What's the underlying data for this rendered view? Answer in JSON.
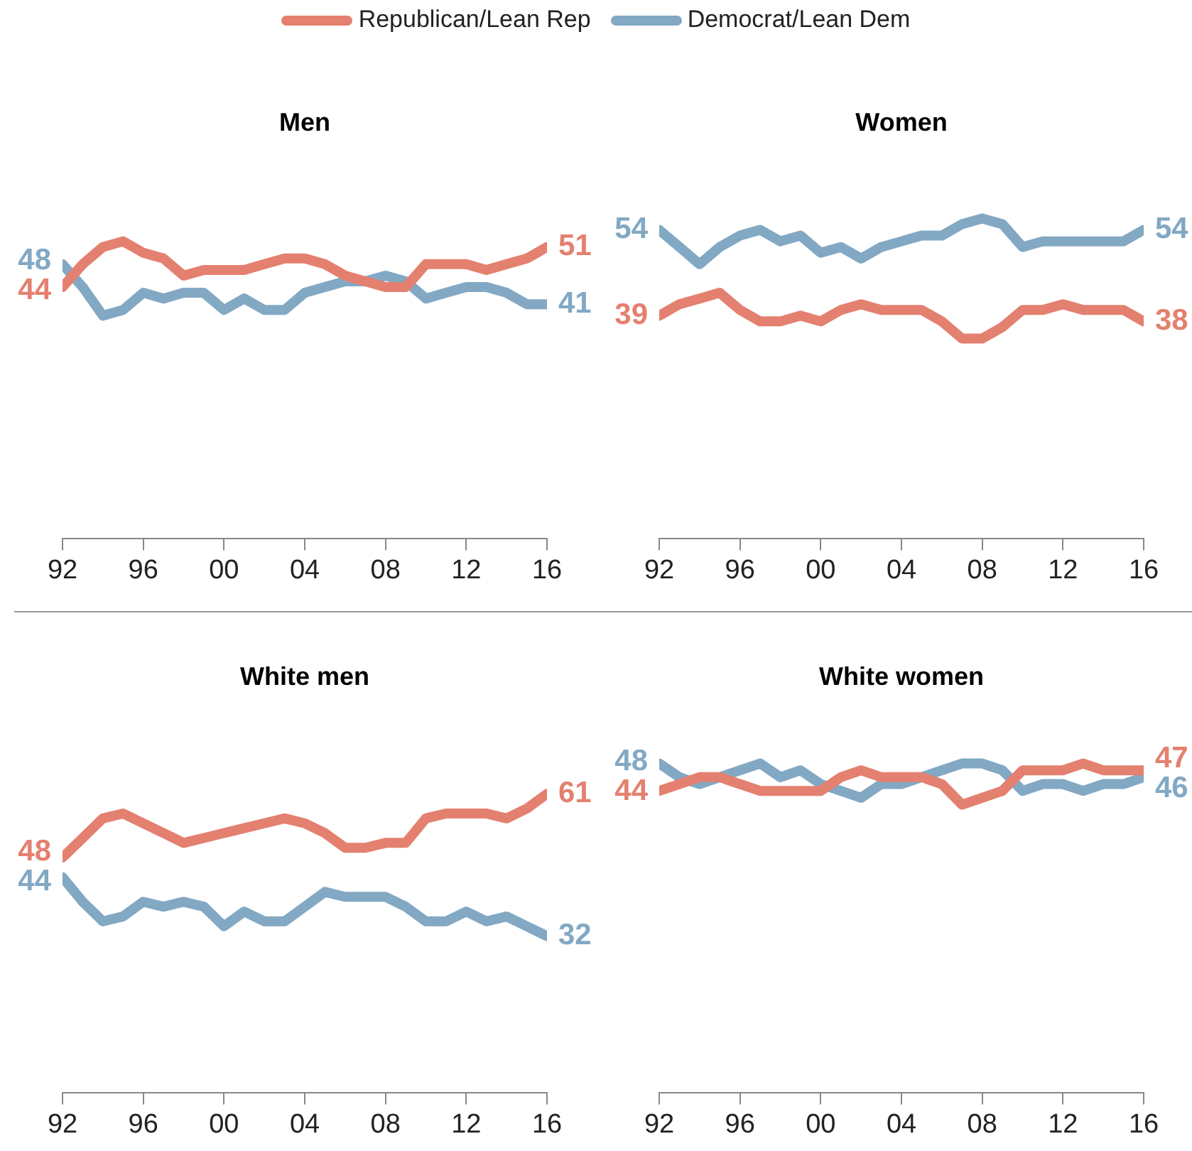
{
  "chart_data": [
    {
      "type": "line",
      "title": "Men",
      "legend": "top",
      "grid": false,
      "marker": "none",
      "line_style": "solid",
      "tick_labels": "x",
      "x": [
        1992,
        1993,
        1994,
        1995,
        1996,
        1997,
        1998,
        1999,
        2000,
        2001,
        2002,
        2003,
        2004,
        2005,
        2006,
        2007,
        2008,
        2009,
        2010,
        2011,
        2012,
        2013,
        2014,
        2015,
        2016
      ],
      "xlim": [
        1992,
        2016
      ],
      "xticks": [
        {
          "value": 1992,
          "label": "92"
        },
        {
          "value": 1996,
          "label": "96"
        },
        {
          "value": 2000,
          "label": "00"
        },
        {
          "value": 2004,
          "label": "04"
        },
        {
          "value": 2008,
          "label": "08"
        },
        {
          "value": 2012,
          "label": "12"
        },
        {
          "value": 2016,
          "label": "16"
        }
      ],
      "series": [
        {
          "name": "Republican/Lean Rep",
          "color": "#e4806f",
          "values": [
            44,
            48,
            51,
            52,
            50,
            49,
            46,
            47,
            47,
            47,
            48,
            49,
            49,
            48,
            46,
            45,
            44,
            44,
            48,
            48,
            48,
            47,
            48,
            49,
            51
          ],
          "value_labels": [
            "44",
            null,
            null,
            null,
            null,
            null,
            null,
            null,
            null,
            null,
            null,
            null,
            null,
            null,
            null,
            null,
            null,
            null,
            null,
            null,
            null,
            null,
            null,
            null,
            "51"
          ]
        },
        {
          "name": "Democrat/Lean Dem",
          "color": "#82a8c4",
          "values": [
            48,
            44,
            39,
            40,
            43,
            42,
            43,
            43,
            40,
            42,
            40,
            40,
            43,
            44,
            45,
            45,
            46,
            45,
            42,
            43,
            44,
            44,
            43,
            41,
            41
          ],
          "value_labels": [
            "48",
            null,
            null,
            null,
            null,
            null,
            null,
            null,
            null,
            null,
            null,
            null,
            null,
            null,
            null,
            null,
            null,
            null,
            null,
            null,
            null,
            null,
            null,
            null,
            "41"
          ]
        }
      ]
    },
    {
      "type": "line",
      "title": "Women",
      "grid": false,
      "marker": "none",
      "line_style": "solid",
      "tick_labels": "x",
      "x": [
        1992,
        1993,
        1994,
        1995,
        1996,
        1997,
        1998,
        1999,
        2000,
        2001,
        2002,
        2003,
        2004,
        2005,
        2006,
        2007,
        2008,
        2009,
        2010,
        2011,
        2012,
        2013,
        2014,
        2015,
        2016
      ],
      "xlim": [
        1992,
        2016
      ],
      "xticks": [
        {
          "value": 1992,
          "label": "92"
        },
        {
          "value": 1996,
          "label": "96"
        },
        {
          "value": 2000,
          "label": "00"
        },
        {
          "value": 2004,
          "label": "04"
        },
        {
          "value": 2008,
          "label": "08"
        },
        {
          "value": 2012,
          "label": "12"
        },
        {
          "value": 2016,
          "label": "16"
        }
      ],
      "series": [
        {
          "color": "#e4806f",
          "values": [
            39,
            41,
            42,
            43,
            40,
            38,
            38,
            39,
            38,
            40,
            41,
            40,
            40,
            40,
            38,
            35,
            35,
            37,
            40,
            40,
            41,
            40,
            40,
            40,
            38
          ],
          "value_labels": [
            "39",
            null,
            null,
            null,
            null,
            null,
            null,
            null,
            null,
            null,
            null,
            null,
            null,
            null,
            null,
            null,
            null,
            null,
            null,
            null,
            null,
            null,
            null,
            null,
            "38"
          ]
        },
        {
          "color": "#82a8c4",
          "values": [
            54,
            51,
            48,
            51,
            53,
            54,
            52,
            53,
            50,
            51,
            49,
            51,
            52,
            53,
            53,
            55,
            56,
            55,
            51,
            52,
            52,
            52,
            52,
            52,
            54
          ],
          "value_labels": [
            "54",
            null,
            null,
            null,
            null,
            null,
            null,
            null,
            null,
            null,
            null,
            null,
            null,
            null,
            null,
            null,
            null,
            null,
            null,
            null,
            null,
            null,
            null,
            null,
            "54"
          ]
        }
      ]
    },
    {
      "type": "line",
      "title": "White men",
      "grid": false,
      "marker": "none",
      "line_style": "solid",
      "tick_labels": "x",
      "x": [
        1992,
        1993,
        1994,
        1995,
        1996,
        1997,
        1998,
        1999,
        2000,
        2001,
        2002,
        2003,
        2004,
        2005,
        2006,
        2007,
        2008,
        2009,
        2010,
        2011,
        2012,
        2013,
        2014,
        2015,
        2016
      ],
      "xlim": [
        1992,
        2016
      ],
      "xticks": [
        {
          "value": 1992,
          "label": "92"
        },
        {
          "value": 1996,
          "label": "96"
        },
        {
          "value": 2000,
          "label": "00"
        },
        {
          "value": 2004,
          "label": "04"
        },
        {
          "value": 2008,
          "label": "08"
        },
        {
          "value": 2012,
          "label": "12"
        },
        {
          "value": 2016,
          "label": "16"
        }
      ],
      "series": [
        {
          "color": "#e4806f",
          "values": [
            48,
            52,
            56,
            57,
            55,
            53,
            51,
            52,
            53,
            54,
            55,
            56,
            55,
            53,
            50,
            50,
            51,
            51,
            56,
            57,
            57,
            57,
            56,
            58,
            61
          ],
          "value_labels": [
            "48",
            null,
            null,
            null,
            null,
            null,
            null,
            null,
            null,
            null,
            null,
            null,
            null,
            null,
            null,
            null,
            null,
            null,
            null,
            null,
            null,
            null,
            null,
            null,
            "61"
          ]
        },
        {
          "color": "#82a8c4",
          "values": [
            44,
            39,
            35,
            36,
            39,
            38,
            39,
            38,
            34,
            37,
            35,
            35,
            38,
            41,
            40,
            40,
            40,
            38,
            35,
            35,
            37,
            35,
            36,
            34,
            32
          ],
          "value_labels": [
            "44",
            null,
            null,
            null,
            null,
            null,
            null,
            null,
            null,
            null,
            null,
            null,
            null,
            null,
            null,
            null,
            null,
            null,
            null,
            null,
            null,
            null,
            null,
            null,
            "32"
          ]
        }
      ]
    },
    {
      "type": "line",
      "title": "White women",
      "grid": false,
      "marker": "none",
      "line_style": "solid",
      "tick_labels": "x",
      "x": [
        1992,
        1993,
        1994,
        1995,
        1996,
        1997,
        1998,
        1999,
        2000,
        2001,
        2002,
        2003,
        2004,
        2005,
        2006,
        2007,
        2008,
        2009,
        2010,
        2011,
        2012,
        2013,
        2014,
        2015,
        2016
      ],
      "xlim": [
        1992,
        2016
      ],
      "xticks": [
        {
          "value": 1992,
          "label": "92"
        },
        {
          "value": 1996,
          "label": "96"
        },
        {
          "value": 2000,
          "label": "00"
        },
        {
          "value": 2004,
          "label": "04"
        },
        {
          "value": 2008,
          "label": "08"
        },
        {
          "value": 2012,
          "label": "12"
        },
        {
          "value": 2016,
          "label": "16"
        }
      ],
      "series": [
        {
          "color": "#e4806f",
          "values": [
            44,
            45,
            46,
            46,
            45,
            44,
            44,
            44,
            44,
            46,
            47,
            46,
            46,
            46,
            45,
            42,
            43,
            44,
            47,
            47,
            47,
            48,
            47,
            47,
            47
          ],
          "value_labels": [
            "44",
            null,
            null,
            null,
            null,
            null,
            null,
            null,
            null,
            null,
            null,
            null,
            null,
            null,
            null,
            null,
            null,
            null,
            null,
            null,
            null,
            null,
            null,
            null,
            "47"
          ]
        },
        {
          "color": "#82a8c4",
          "values": [
            48,
            46,
            45,
            46,
            47,
            48,
            46,
            47,
            45,
            44,
            43,
            45,
            45,
            46,
            47,
            48,
            48,
            47,
            44,
            45,
            45,
            44,
            45,
            45,
            46
          ],
          "value_labels": [
            "48",
            null,
            null,
            null,
            null,
            null,
            null,
            null,
            null,
            null,
            null,
            null,
            null,
            null,
            null,
            null,
            null,
            null,
            null,
            null,
            null,
            null,
            null,
            null,
            "46"
          ]
        }
      ]
    }
  ]
}
